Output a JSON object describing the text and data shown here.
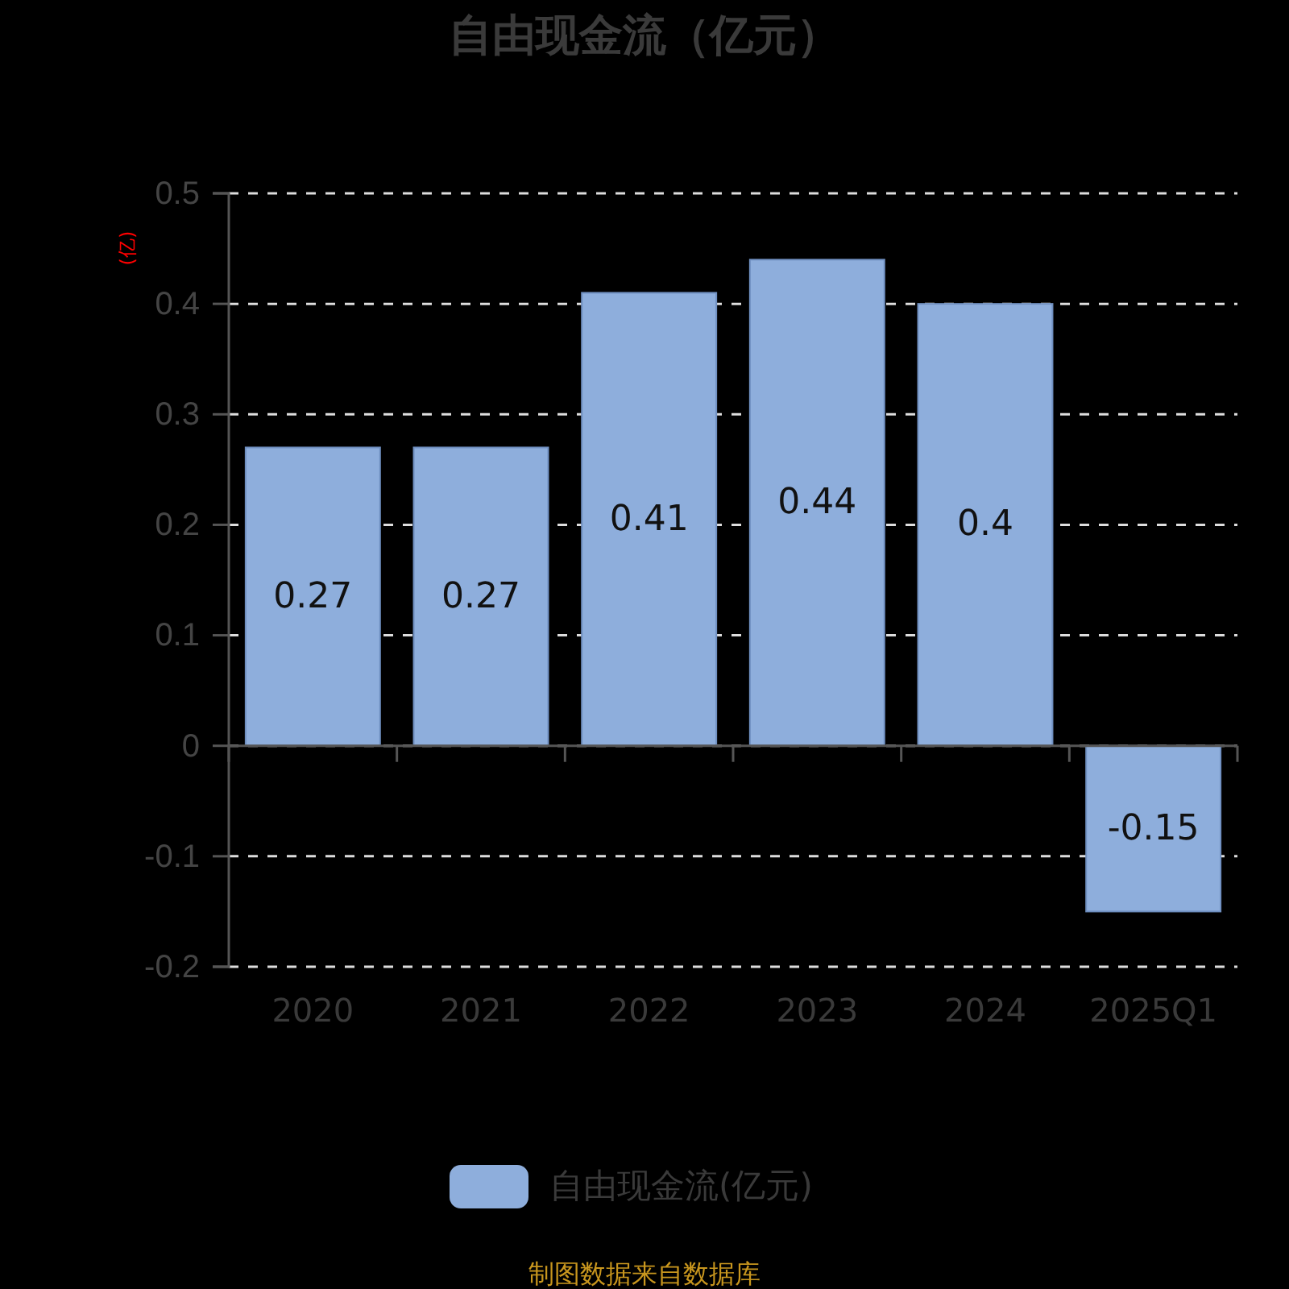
{
  "chart_data": {
    "type": "bar",
    "title": "自由现金流（亿元）",
    "ylabel": "(亿)",
    "categories": [
      "2020",
      "2021",
      "2022",
      "2023",
      "2024",
      "2025Q1"
    ],
    "series": [
      {
        "name": "自由现金流(亿元)",
        "color": "#8eaedc",
        "values": [
          0.27,
          0.27,
          0.41,
          0.44,
          0.4,
          -0.15
        ]
      }
    ],
    "ylim": [
      -0.2,
      0.5
    ],
    "yticks": [
      -0.2,
      -0.1,
      0,
      0.1,
      0.2,
      0.3,
      0.4,
      0.5
    ],
    "grid": "y",
    "legend": "bottom",
    "data_labels": true,
    "annotations": [
      "制图数据来自数据库"
    ]
  }
}
